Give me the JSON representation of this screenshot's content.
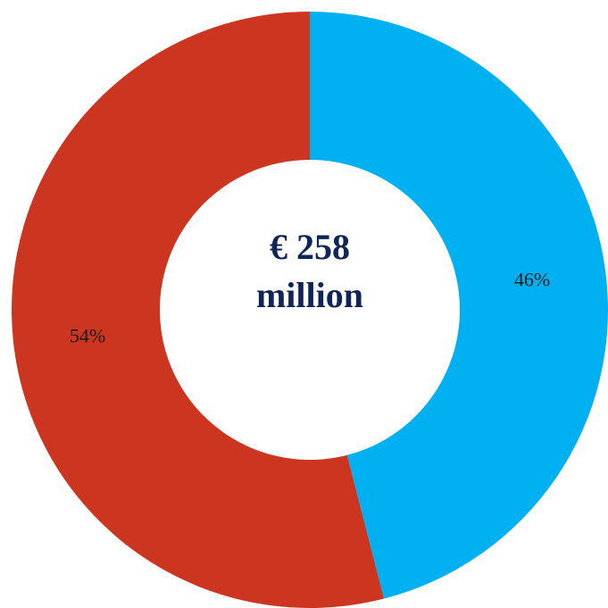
{
  "chart_data": {
    "type": "pie",
    "style": "donut",
    "categories": [
      "",
      ""
    ],
    "values": [
      46,
      54
    ],
    "labels": [
      "46%",
      "54%"
    ],
    "colors": [
      "#00b0f0",
      "#cc3520"
    ],
    "title": "",
    "center_label": {
      "line1": "€ 258",
      "line2": "million"
    },
    "start_angle": "12 o'clock",
    "direction": "clockwise",
    "legend": "none"
  }
}
